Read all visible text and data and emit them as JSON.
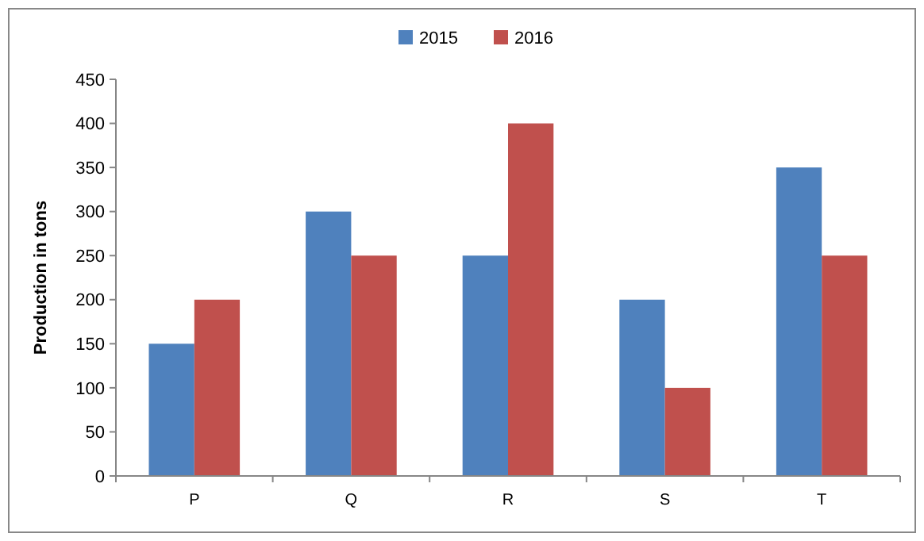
{
  "chart_data": {
    "type": "bar",
    "ylabel": "Production in tons",
    "categories": [
      "P",
      "Q",
      "R",
      "S",
      "T"
    ],
    "series": [
      {
        "name": "2015",
        "color": "#4f81bd",
        "values": [
          150,
          300,
          250,
          200,
          350
        ]
      },
      {
        "name": "2016",
        "color": "#c0504d",
        "values": [
          200,
          250,
          400,
          100,
          250
        ]
      }
    ],
    "ylim": [
      0,
      450
    ],
    "yticks": [
      0,
      50,
      100,
      150,
      200,
      250,
      300,
      350,
      400,
      450
    ],
    "grid": false,
    "legend": "top"
  }
}
